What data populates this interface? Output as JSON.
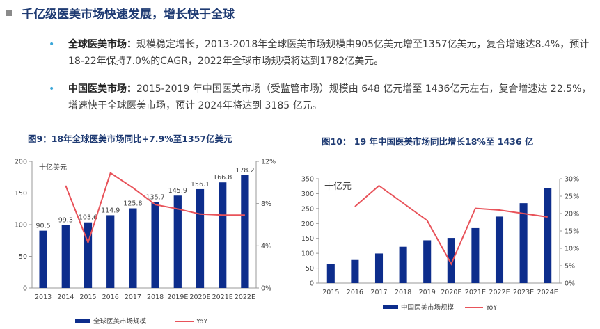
{
  "header": {
    "title": "千亿级医美市场快速发展，增长快于全球"
  },
  "bullets": [
    {
      "label": "全球医美市场：",
      "text": "规模稳定增长，2013-2018年全球医美市场规模由905亿美元增至1357亿美元，复合增速达8.4%，预计18-22年保持7.0%的CAGR，2022年全球市场规模将达到1782亿美元。"
    },
    {
      "label": "中国医美市场：",
      "text": "2015-2019 年中国医美市场（受监管市场）规模由 648 亿元增至 1436亿元左右，复合增速达 22.5%，增速快于全球医美市场，预计 2024年将达到 3185 亿元。"
    }
  ],
  "chart_data": [
    {
      "type": "bar",
      "title": "图9：18年全球医美市场同比+7.9%至1357亿美元",
      "unit_label": "十亿美元",
      "categories": [
        "2013",
        "2014",
        "2015",
        "2016",
        "2017",
        "2018",
        "2019E",
        "2020E",
        "2021E",
        "2022E"
      ],
      "series": [
        {
          "name": "全球医美市场规模",
          "type": "bar",
          "axis": "left",
          "color": "#0d2d8c",
          "values": [
            90.5,
            99.3,
            103.6,
            114.9,
            125.8,
            135.7,
            145.9,
            156.1,
            166.8,
            178.2
          ],
          "show_labels": true
        },
        {
          "name": "YoY",
          "type": "line",
          "axis": "right",
          "color": "#e8535a",
          "values": [
            null,
            9.7,
            4.3,
            10.9,
            9.5,
            7.9,
            7.5,
            7.0,
            6.9,
            6.9
          ]
        }
      ],
      "ylim": [
        0,
        200
      ],
      "yticks": [
        0,
        50,
        100,
        150,
        200
      ],
      "y2lim": [
        0,
        12
      ],
      "y2ticks": [
        "0%",
        "4%",
        "8%",
        "12%"
      ],
      "legend": "bottom"
    },
    {
      "type": "bar",
      "title": "图10： 19 年中国医美市场同比增长18%至 1436 亿",
      "unit_label": "十亿元",
      "categories": [
        "2015",
        "2016",
        "2017",
        "2018",
        "2019",
        "2020E",
        "2021E",
        "2022E",
        "2023E",
        "2024E"
      ],
      "series": [
        {
          "name": "中国医美市场规模",
          "type": "bar",
          "axis": "left",
          "color": "#0d2d8c",
          "values": [
            64.8,
            77.6,
            99.3,
            122.0,
            143.6,
            151.5,
            184.5,
            223.0,
            268.0,
            318.5
          ],
          "show_labels": false
        },
        {
          "name": "YoY",
          "type": "line",
          "axis": "right",
          "color": "#e8535a",
          "values": [
            null,
            22.0,
            28.0,
            23.0,
            18.0,
            5.5,
            21.5,
            21.0,
            20.0,
            19.0
          ]
        }
      ],
      "ylim": [
        0,
        350
      ],
      "yticks": [
        0,
        50,
        100,
        150,
        200,
        250,
        300,
        350
      ],
      "y2lim": [
        0,
        30
      ],
      "y2ticks": [
        "0%",
        "5%",
        "10%",
        "15%",
        "20%",
        "25%",
        "30%"
      ],
      "legend": "bottom"
    }
  ]
}
